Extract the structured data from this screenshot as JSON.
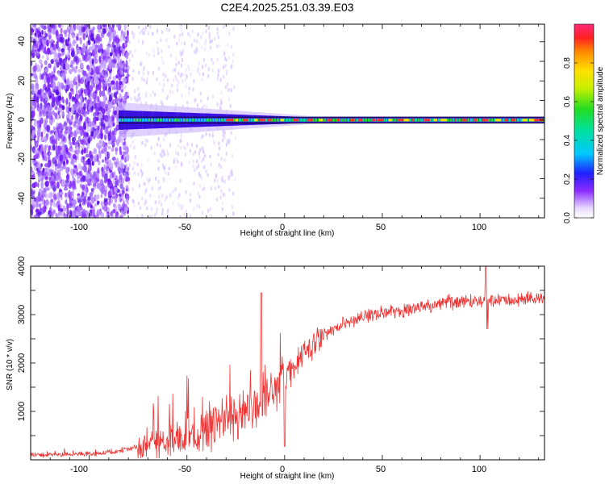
{
  "figure": {
    "title": "C2E4.2025.251.03.39.E03"
  },
  "chart_data": [
    {
      "type": "heatmap",
      "title": "",
      "xlabel": "Height of straight line (km)",
      "ylabel": "Frequency (Hz)",
      "xlim": [
        -130,
        133
      ],
      "ylim": [
        -50,
        49
      ],
      "xticks": [
        -100,
        -50,
        0,
        50,
        100
      ],
      "xtick_labels": [
        "-100",
        "-50",
        "0",
        "50",
        "100"
      ],
      "yticks": [
        -40,
        -20,
        0,
        20,
        40
      ],
      "ytick_labels": [
        "-40",
        "-20",
        "0",
        "20",
        "40"
      ],
      "description_of_pattern": "Strong narrow band near 0 Hz from about -85 km to 133 km; broadband scattered noise below about -85 km.",
      "ridge_frequency": 0,
      "noise_region_end_km": -85,
      "colorbar": {
        "label": "Normalized spectral amplitude",
        "range": [
          0,
          1
        ],
        "ticks": [
          0.0,
          0.2,
          0.4,
          0.6,
          0.8
        ],
        "tick_labels": [
          "0.0",
          "0.2",
          "0.4",
          "0.6",
          "0.8"
        ]
      }
    },
    {
      "type": "line",
      "title": "",
      "xlabel": "Height of straight line (km)",
      "ylabel": "SNR (10 * v/v)",
      "xlim": [
        -130,
        133
      ],
      "ylim": [
        0,
        4000
      ],
      "xticks": [
        -100,
        -50,
        0,
        50,
        100
      ],
      "xtick_labels": [
        "-100",
        "-50",
        "0",
        "50",
        "100"
      ],
      "yticks": [
        1000,
        2000,
        3000,
        4000
      ],
      "ytick_labels": [
        "1000",
        "2000",
        "3000",
        "4000"
      ],
      "series": [
        {
          "name": "SNR",
          "color": "#ee3333",
          "x": [
            -130,
            -120,
            -110,
            -100,
            -90,
            -80,
            -70,
            -60,
            -50,
            -40,
            -30,
            -20,
            -15,
            -10,
            -5,
            0,
            5,
            10,
            20,
            30,
            40,
            50,
            60,
            70,
            80,
            90,
            100,
            110,
            120,
            133
          ],
          "y": [
            100,
            100,
            110,
            120,
            150,
            220,
            320,
            420,
            520,
            620,
            800,
            950,
            1150,
            1300,
            1450,
            1700,
            1950,
            2200,
            2550,
            2800,
            2960,
            3040,
            3100,
            3160,
            3230,
            3270,
            3300,
            3310,
            3320,
            3330
          ]
        }
      ],
      "annotations": [
        {
          "x": -12,
          "y": 3450,
          "label": ""
        },
        {
          "x": 103,
          "y": 4000,
          "label": ""
        }
      ]
    }
  ]
}
